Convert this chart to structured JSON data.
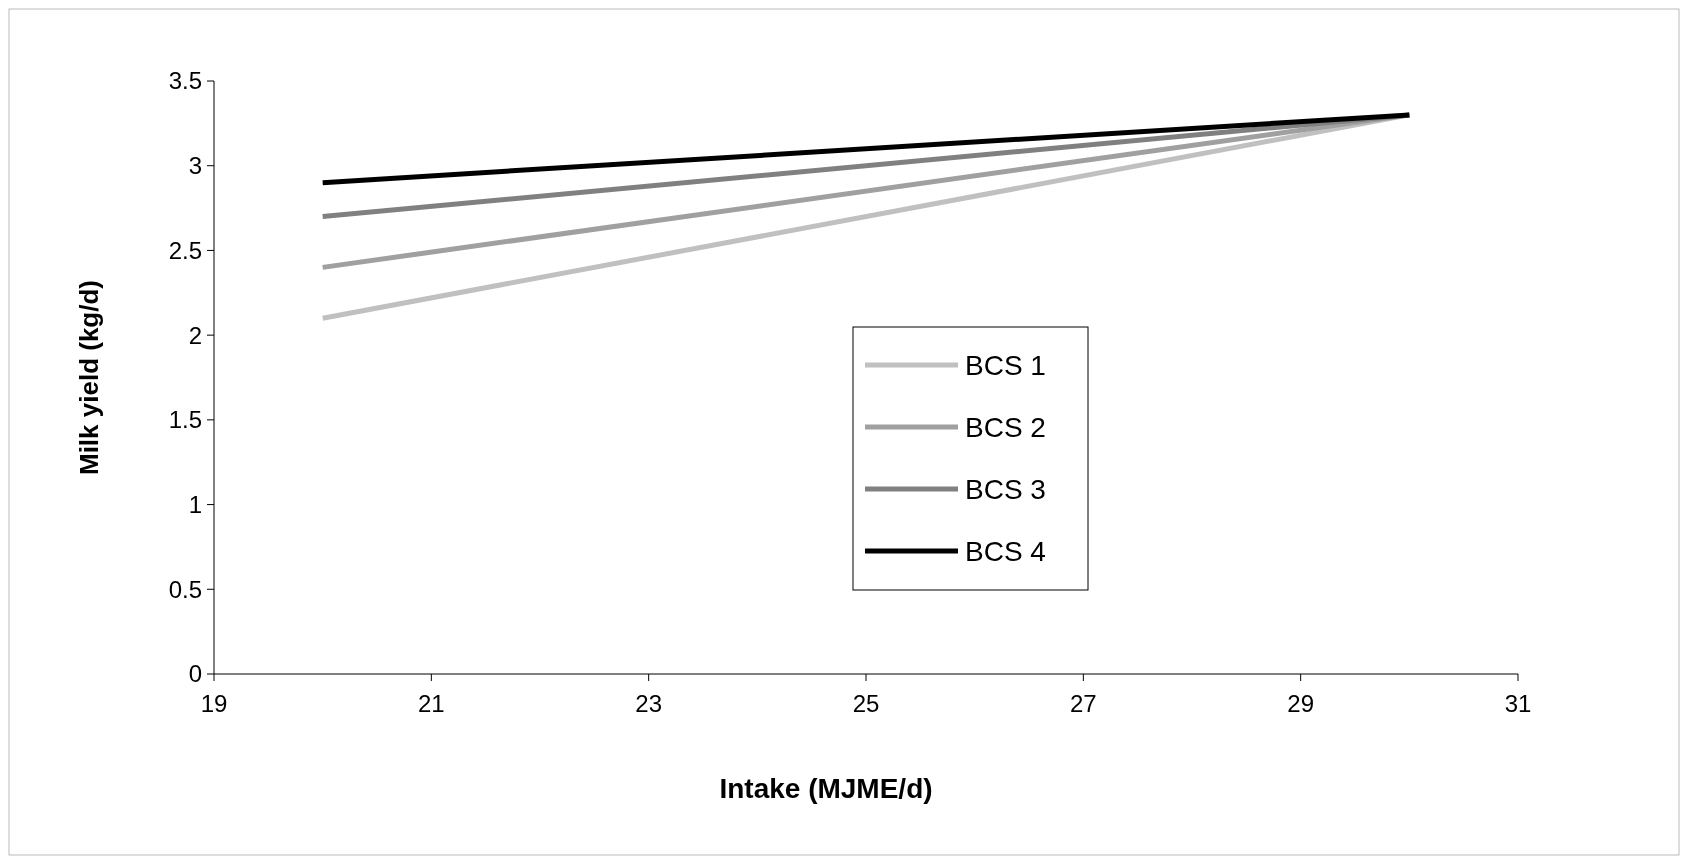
{
  "chart_data": {
    "type": "line",
    "xlabel": "Intake (MJME/d)",
    "ylabel": "Milk yield (kg/d)",
    "x": [
      20,
      30
    ],
    "series": [
      {
        "name": "BCS 1",
        "color": "#c0c0c0",
        "values": [
          2.1,
          3.3
        ]
      },
      {
        "name": "BCS 2",
        "color": "#a0a0a0",
        "values": [
          2.4,
          3.3
        ]
      },
      {
        "name": "BCS 3",
        "color": "#808080",
        "values": [
          2.7,
          3.3
        ]
      },
      {
        "name": "BCS 4",
        "color": "#000000",
        "values": [
          2.9,
          3.3
        ]
      }
    ],
    "xlim": [
      19,
      31
    ],
    "xticks": [
      19,
      21,
      23,
      25,
      27,
      29,
      31
    ],
    "ylim": [
      0,
      3.5
    ],
    "yticks": [
      0,
      0.5,
      1,
      1.5,
      2,
      2.5,
      3,
      3.5
    ],
    "grid": false,
    "legend": "bottom",
    "marker": "none",
    "line_style": "solid"
  }
}
